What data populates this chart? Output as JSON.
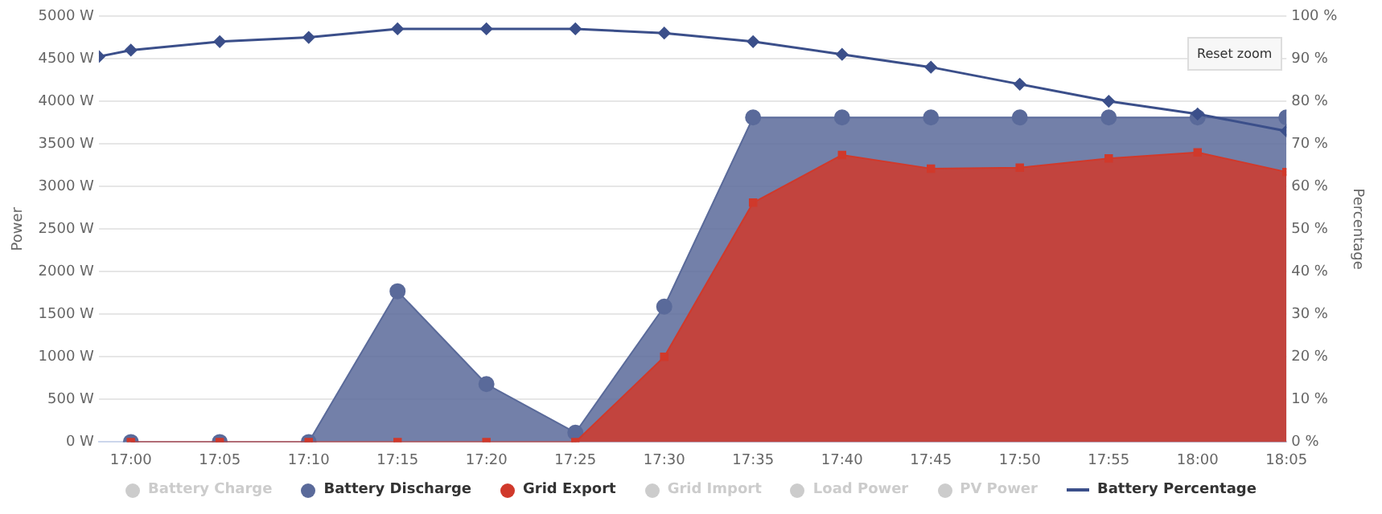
{
  "chart_data": {
    "type": "area",
    "ylabel": "Power",
    "y2label": "Percentage",
    "xlim": [
      16.97,
      18.0833
    ],
    "xticks": [
      {
        "value": 17,
        "label": "17:00"
      },
      {
        "value": 17.0833,
        "label": "17:05"
      },
      {
        "value": 17.1667,
        "label": "17:10"
      },
      {
        "value": 17.25,
        "label": "17:15"
      },
      {
        "value": 17.3333,
        "label": "17:20"
      },
      {
        "value": 17.4167,
        "label": "17:25"
      },
      {
        "value": 17.5,
        "label": "17:30"
      },
      {
        "value": 17.5833,
        "label": "17:35"
      },
      {
        "value": 17.6667,
        "label": "17:40"
      },
      {
        "value": 17.75,
        "label": "17:45"
      },
      {
        "value": 17.8333,
        "label": "17:50"
      },
      {
        "value": 17.9167,
        "label": "17:55"
      },
      {
        "value": 18,
        "label": "18:00"
      },
      {
        "value": 18.0833,
        "label": "18:05"
      }
    ],
    "ylim": [
      0,
      5000
    ],
    "yticks": [
      {
        "value": 0,
        "label": "0 W"
      },
      {
        "value": 500,
        "label": "500 W"
      },
      {
        "value": 1000,
        "label": "1000 W"
      },
      {
        "value": 1500,
        "label": "1500 W"
      },
      {
        "value": 2000,
        "label": "2000 W"
      },
      {
        "value": 2500,
        "label": "2500 W"
      },
      {
        "value": 3000,
        "label": "3000 W"
      },
      {
        "value": 3500,
        "label": "3500 W"
      },
      {
        "value": 4000,
        "label": "4000 W"
      },
      {
        "value": 4500,
        "label": "4500 W"
      },
      {
        "value": 5000,
        "label": "5000 W"
      }
    ],
    "y2lim": [
      0,
      100
    ],
    "y2ticks": [
      {
        "value": 0,
        "label": "0 %"
      },
      {
        "value": 10,
        "label": "10 %"
      },
      {
        "value": 20,
        "label": "20 %"
      },
      {
        "value": 30,
        "label": "30 %"
      },
      {
        "value": 40,
        "label": "40 %"
      },
      {
        "value": 50,
        "label": "50 %"
      },
      {
        "value": 60,
        "label": "60 %"
      },
      {
        "value": 70,
        "label": "70 %"
      },
      {
        "value": 80,
        "label": "80 %"
      },
      {
        "value": 90,
        "label": "90 %"
      },
      {
        "value": 100,
        "label": "100 %"
      }
    ],
    "x": [
      17,
      17.0833,
      17.1667,
      17.25,
      17.3333,
      17.4167,
      17.5,
      17.5833,
      17.6667,
      17.75,
      17.8333,
      17.9167,
      18,
      18.0833
    ],
    "grid": "y",
    "legend": "bottom",
    "annotations": [
      "Reset zoom"
    ],
    "series": [
      {
        "name": "Battery Charge",
        "color": "#cccccc",
        "values": [
          null,
          null,
          null,
          null,
          null,
          null,
          null,
          null,
          null,
          null,
          null,
          null,
          null,
          null
        ]
      },
      {
        "name": "Battery Discharge",
        "color": "#5a6a9a",
        "marker": "circle",
        "values": [
          0,
          0,
          0,
          1770,
          680,
          110,
          1590,
          3810,
          3810,
          3810,
          3810,
          3810,
          3810,
          3810
        ]
      },
      {
        "name": "Grid Export",
        "color": "#d0392b",
        "marker": "square",
        "values": [
          0,
          0,
          0,
          0,
          0,
          0,
          1000,
          2810,
          3370,
          3210,
          3220,
          3330,
          3400,
          3170
        ]
      },
      {
        "name": "Grid Import",
        "color": "#cccccc",
        "values": [
          null,
          null,
          null,
          null,
          null,
          null,
          null,
          null,
          null,
          null,
          null,
          null,
          null,
          null
        ]
      },
      {
        "name": "Load Power",
        "color": "#cccccc",
        "values": [
          null,
          null,
          null,
          null,
          null,
          null,
          null,
          null,
          null,
          null,
          null,
          null,
          null,
          null
        ]
      },
      {
        "name": "PV Power",
        "color": "#cccccc",
        "values": [
          null,
          null,
          null,
          null,
          null,
          null,
          null,
          null,
          null,
          null,
          null,
          null,
          null,
          null
        ]
      },
      {
        "name": "Battery Percentage",
        "type": "line",
        "axis": "y2",
        "color": "#3b4f8a",
        "marker": "diamond",
        "x": [
          16.97,
          17,
          17.0833,
          17.1667,
          17.25,
          17.3333,
          17.4167,
          17.5,
          17.5833,
          17.6667,
          17.75,
          17.8333,
          17.9167,
          18,
          18.0833
        ],
        "values": [
          90.5,
          92,
          94,
          95,
          97,
          97,
          97,
          96,
          94,
          91,
          88,
          84,
          80,
          77,
          73
        ]
      }
    ]
  }
}
